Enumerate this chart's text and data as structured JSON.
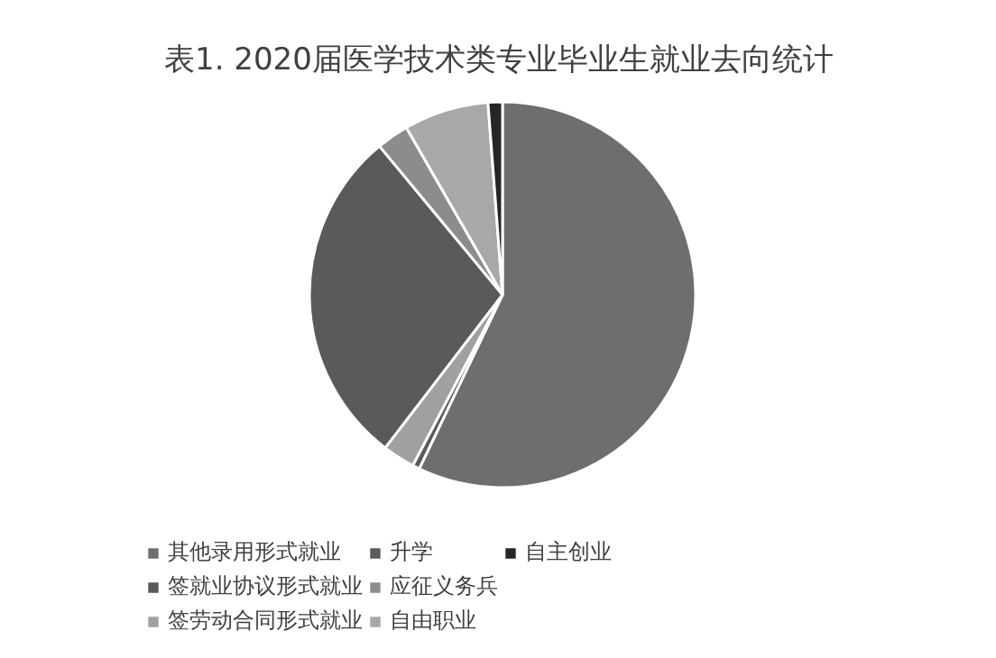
{
  "chart_data": {
    "type": "pie",
    "title": "表1. 2020届医学技术类专业毕业生就业去向统计",
    "categories": [
      "其他录用形式就业",
      "签就业协议形式就业",
      "签劳动合同形式就业",
      "升学",
      "应征义务兵",
      "自由职业",
      "自主创业"
    ],
    "values": [
      57.1,
      0.6,
      2.7,
      28.6,
      2.7,
      7.1,
      1.2
    ],
    "colors": [
      "#6e6e6e",
      "#595959",
      "#a0a0a0",
      "#5a5a5a",
      "#8c8c8c",
      "#a8a8a8",
      "#262626"
    ],
    "legend": "bottom"
  }
}
